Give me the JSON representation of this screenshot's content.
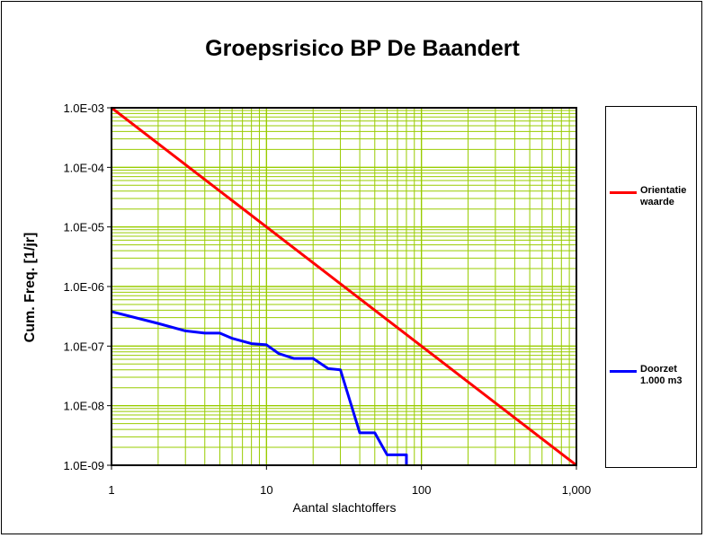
{
  "chart_data": {
    "type": "line",
    "title": "Groepsrisico BP De Baandert",
    "xlabel": "Aantal slachtoffers",
    "ylabel": "Cum. Freq. [1/jr]",
    "xscale": "log",
    "yscale": "log",
    "xlim": [
      1,
      1000
    ],
    "ylim": [
      1e-09,
      0.001
    ],
    "xticks": [
      1,
      10,
      100,
      1000
    ],
    "xtick_labels": [
      "1",
      "10",
      "100",
      "1,000"
    ],
    "yticks": [
      1e-09,
      1e-08,
      1e-07,
      1e-06,
      1e-05,
      0.0001,
      0.001
    ],
    "ytick_labels": [
      "1.0E-09",
      "1.0E-08",
      "1.0E-07",
      "1.0E-06",
      "1.0E-05",
      "1.0E-04",
      "1.0E-03"
    ],
    "grid": true,
    "legend_position": "right",
    "plot_background": "#ffffff",
    "grid_color": "#99cc00",
    "series": [
      {
        "name": "Orientatie waarde",
        "color": "#ff0000",
        "x": [
          1,
          1000
        ],
        "y": [
          0.001,
          1e-09
        ]
      },
      {
        "name": "Doorzet 1.000 m3",
        "color": "#0000ff",
        "x": [
          1,
          2,
          3,
          4,
          5,
          6,
          8,
          10,
          12,
          15,
          20,
          25,
          30,
          40,
          50,
          60,
          80,
          80
        ],
        "y": [
          3.8e-07,
          2.4e-07,
          1.8e-07,
          1.65e-07,
          1.65e-07,
          1.35e-07,
          1.1e-07,
          1.05e-07,
          7.5e-08,
          6.2e-08,
          6.2e-08,
          4.2e-08,
          4e-08,
          3.5e-09,
          3.5e-09,
          1.5e-09,
          1.5e-09,
          1e-09
        ]
      }
    ]
  }
}
